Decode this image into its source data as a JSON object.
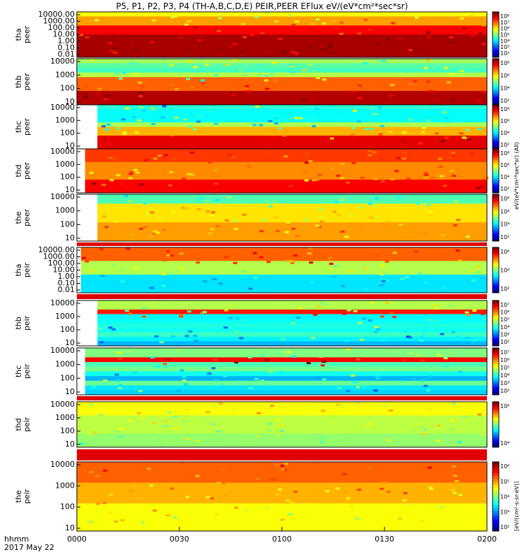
{
  "title": "P5, P1, P2, P3, P4 (TH-A,B,C,D,E) PEIR,PEER EFlux eV/(eV*cm²*sec*sr)",
  "colorbar_unit_label": "[eV/(cm²-s-sr-eV)]",
  "colorbar_side_label": "eV/(eV*cm²*sec*sr) (All)",
  "chart_data": {
    "type": "heatmap",
    "x_label": "hhmm",
    "date_label": "2017 May 22",
    "x_ticks": [
      "0000",
      "0030",
      "0100",
      "0130",
      "0200"
    ],
    "panels": [
      {
        "label_top": "tha",
        "label_bottom": "peer",
        "y_ticks": [
          "10000.00",
          "1000.00",
          "100.00",
          "10.00",
          "1.00",
          "0.10",
          "0.01"
        ],
        "cb_ticks": [
          "10⁸",
          "10⁷",
          "10⁶",
          "10⁵",
          "10⁴",
          "10³",
          "10²"
        ]
      },
      {
        "label_top": "thb",
        "label_bottom": "peer",
        "y_ticks": [
          "10000",
          "1000",
          "100",
          "10"
        ],
        "cb_ticks": [
          "10⁸",
          "10⁶",
          "10⁴",
          "10²"
        ]
      },
      {
        "label_top": "thc",
        "label_bottom": "peer",
        "y_ticks": [
          "10000",
          "1000",
          "100",
          "10"
        ],
        "cb_ticks": [
          "10⁸",
          "10⁶",
          "10⁴",
          "10²"
        ]
      },
      {
        "label_top": "thd",
        "label_bottom": "peer",
        "y_ticks": [
          "10000",
          "1000",
          "100",
          "10"
        ],
        "cb_ticks": [
          "10⁸",
          "10⁶",
          "10⁴",
          "10²"
        ]
      },
      {
        "label_top": "the",
        "label_bottom": "peer",
        "y_ticks": [
          "10000",
          "1000",
          "100",
          "10"
        ],
        "cb_ticks": [
          "10⁸",
          "10⁶",
          "10⁴",
          "10²"
        ]
      },
      {
        "label_top": "tha",
        "label_bottom": "peir",
        "y_ticks": [
          "10000.00",
          "1000.00",
          "100.00",
          "10.00",
          "1.00",
          "0.10",
          "0.01"
        ],
        "cb_ticks": [
          "10⁶",
          "10⁴",
          "10²"
        ]
      },
      {
        "label_top": "thb",
        "label_bottom": "peir",
        "y_ticks": [
          "10000",
          "1000",
          "100",
          "10"
        ],
        "cb_ticks": [
          "10⁷",
          "10⁶",
          "10⁵",
          "10⁴",
          "10³",
          "10²"
        ]
      },
      {
        "label_top": "thc",
        "label_bottom": "peir",
        "y_ticks": [
          "10000",
          "1000",
          "100",
          "10"
        ],
        "cb_ticks": [
          "10⁷",
          "10⁶",
          "10⁵",
          "10⁴",
          "10³",
          "10²"
        ]
      },
      {
        "label_top": "thd",
        "label_bottom": "peir",
        "y_ticks": [
          "10000",
          "1000",
          "100",
          "10"
        ],
        "cb_ticks": [
          "10⁶",
          "10⁴"
        ]
      },
      {
        "label_top": "the",
        "label_bottom": "peir",
        "y_ticks": [
          "10000",
          "1000",
          "100",
          "10"
        ],
        "cb_ticks": [
          "10⁶",
          "10⁵",
          "10⁴",
          "10³",
          "10²"
        ]
      }
    ]
  }
}
